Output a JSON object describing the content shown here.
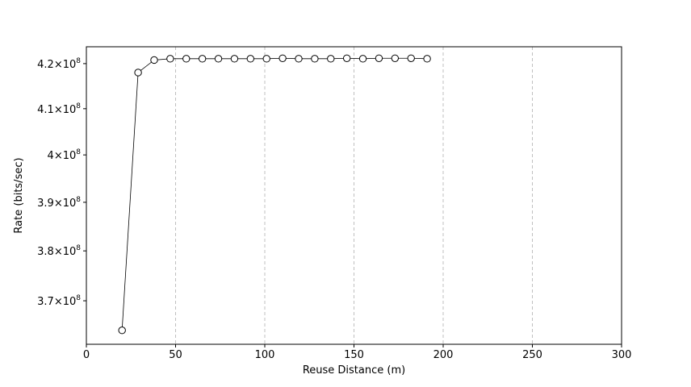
{
  "chart_data": {
    "type": "line",
    "title": "",
    "xlabel": "Reuse Distance (m)",
    "ylabel": "Rate (bits/sec)",
    "xlim": [
      0,
      300
    ],
    "ylim": [
      361500000.0,
      423800000.0
    ],
    "x_ticks": [
      0,
      50,
      100,
      150,
      200,
      250,
      300
    ],
    "x_tick_labels": [
      "0",
      "50",
      "100",
      "150",
      "200",
      "250",
      "300"
    ],
    "y_ticks": [
      {
        "value": 370000000.0,
        "mantissa": "3.7",
        "base": "10",
        "exp": "8"
      },
      {
        "value": 380000000.0,
        "mantissa": "3.8",
        "base": "10",
        "exp": "8"
      },
      {
        "value": 390000000.0,
        "mantissa": "3.9",
        "base": "10",
        "exp": "8"
      },
      {
        "value": 400000000.0,
        "mantissa": "4",
        "base": "10",
        "exp": "8"
      },
      {
        "value": 410000000.0,
        "mantissa": "4.1",
        "base": "10",
        "exp": "8"
      },
      {
        "value": 420000000.0,
        "mantissa": "4.2",
        "base": "10",
        "exp": "8"
      }
    ],
    "y_scale": "log",
    "grid": "x-dashed",
    "line_color": "#000000",
    "grid_color": "#b0b0b0",
    "marker": "open-circle",
    "series": [
      {
        "x": [
          20,
          29,
          38,
          47,
          56,
          65,
          74,
          83,
          92,
          101,
          110,
          119,
          128,
          137,
          146,
          155,
          164,
          173,
          182,
          191
        ],
        "values": [
          364200000.0,
          418000000.0,
          420800000.0,
          421100000.0,
          421100000.0,
          421100000.0,
          421100000.0,
          421100000.0,
          421100000.0,
          421100000.0,
          421200000.0,
          421100000.0,
          421100000.0,
          421100000.0,
          421200000.0,
          421100000.0,
          421200000.0,
          421200000.0,
          421200000.0,
          421100000.0
        ]
      }
    ]
  }
}
